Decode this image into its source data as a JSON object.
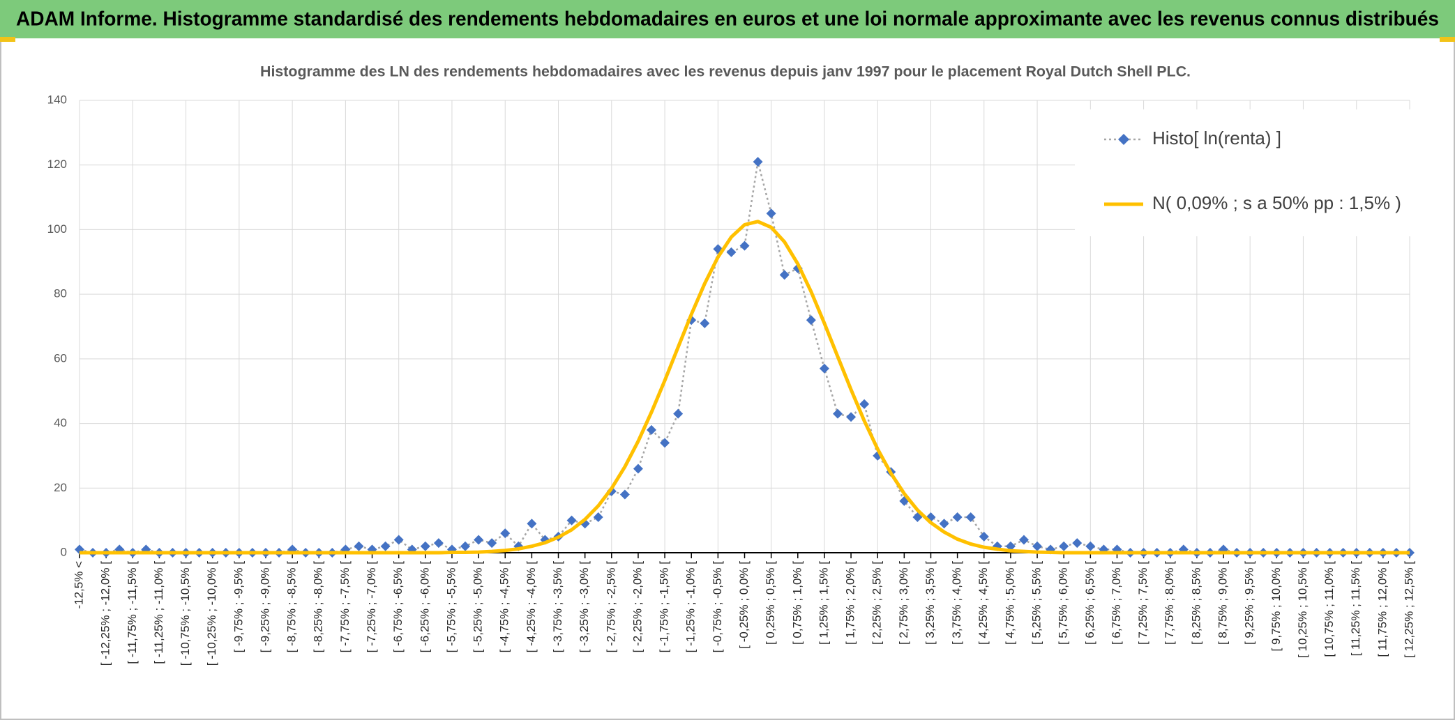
{
  "header": {
    "title": "ADAM Informe. Histogramme standardisé des rendements hebdomadaires en euros et une loi normale approximante avec les revenus connus distribués"
  },
  "chart_data": {
    "type": "line",
    "title": "Histogramme des LN des rendements hebdomadaires avec les revenus depuis janv 1997 pour le placement Royal Dutch Shell PLC.",
    "categories": [
      "-12,5% <",
      null,
      "[ -12,25% ; -12,0% [",
      null,
      "[ -11,75% ; -11,5% [",
      null,
      "[ -11,25% ; -11,0% [",
      null,
      "[ -10,75% ; -10,5% [",
      null,
      "[ -10,25% ; -10,0% [",
      null,
      "[ -9,75% ; -9,5% [",
      null,
      "[ -9,25% ; -9,0% [",
      null,
      "[ -8,75% ; -8,5% [",
      null,
      "[ -8,25% ; -8,0% [",
      null,
      "[ -7,75% ; -7,5% [",
      null,
      "[ -7,25% ; -7,0% [",
      null,
      "[ -6,75% ; -6,5% [",
      null,
      "[ -6,25% ; -6,0% [",
      null,
      "[ -5,75% ; -5,5% [",
      null,
      "[ -5,25% ; -5,0% [",
      null,
      "[ -4,75% ; -4,5% [",
      null,
      "[ -4,25% ; -4,0% [",
      null,
      "[ -3,75% ; -3,5% [",
      null,
      "[ -3,25% ; -3,0% [",
      null,
      "[ -2,75% ; -2,5% [",
      null,
      "[ -2,25% ; -2,0% [",
      null,
      "[ -1,75% ; -1,5% [",
      null,
      "[ -1,25% ; -1,0% [",
      null,
      "[ -0,75% ; -0,5% [",
      null,
      "[ -0,25% ; 0,0% [",
      null,
      "[ 0,25% ; 0,5% [",
      null,
      "[ 0,75% ; 1,0% [",
      null,
      "[ 1,25% ; 1,5% [",
      null,
      "[ 1,75% ; 2,0% [",
      null,
      "[ 2,25% ; 2,5% [",
      null,
      "[ 2,75% ; 3,0% [",
      null,
      "[ 3,25% ; 3,5% [",
      null,
      "[ 3,75% ; 4,0% [",
      null,
      "[ 4,25% ; 4,5% [",
      null,
      "[ 4,75% ; 5,0% [",
      null,
      "[ 5,25% ; 5,5% [",
      null,
      "[ 5,75% ; 6,0% [",
      null,
      "[ 6,25% ; 6,5% [",
      null,
      "[ 6,75% ; 7,0% [",
      null,
      "[ 7,25% ; 7,5% [",
      null,
      "[ 7,75% ; 8,0% [",
      null,
      "[ 8,25% ; 8,5% [",
      null,
      "[ 8,75% ; 9,0% [",
      null,
      "[ 9,25% ; 9,5% [",
      null,
      "[ 9,75% ; 10,0% [",
      null,
      "[ 10,25% ; 10,5% [",
      null,
      "[ 10,75% ; 11,0% [",
      null,
      "[ 11,25% ; 11,5% [",
      null,
      "[ 11,75% ; 12,0% [",
      null,
      "[ 12,25% ; 12,5% ["
    ],
    "series": [
      {
        "name": "Histo[ ln(renta) ]",
        "color": "#4472c4",
        "line_color": "#a6a6a6",
        "linestyle": "dotted",
        "marker": "diamond",
        "values": [
          1,
          0,
          0,
          1,
          0,
          1,
          0,
          0,
          0,
          0,
          0,
          0,
          0,
          0,
          0,
          0,
          1,
          0,
          0,
          0,
          1,
          2,
          1,
          2,
          4,
          1,
          2,
          3,
          1,
          2,
          4,
          3,
          6,
          2,
          9,
          4,
          5,
          10,
          9,
          11,
          19,
          18,
          26,
          38,
          34,
          43,
          72,
          71,
          94,
          93,
          95,
          121,
          105,
          86,
          88,
          72,
          57,
          43,
          42,
          46,
          30,
          25,
          16,
          11,
          11,
          9,
          11,
          11,
          5,
          2,
          2,
          4,
          2,
          1,
          2,
          3,
          2,
          1,
          1,
          0,
          0,
          0,
          0,
          1,
          0,
          0,
          1,
          0,
          0,
          0,
          0,
          0,
          0,
          0,
          0,
          0,
          0,
          0,
          0,
          0,
          0
        ]
      },
      {
        "name": "N( 0,09% ; s a 50% pp : 1,5% )",
        "color": "#ffc000",
        "linestyle": "solid",
        "values": [
          0,
          0,
          0,
          0,
          0,
          0,
          0,
          0,
          0,
          0,
          0,
          0,
          0,
          0,
          0,
          0,
          0,
          0,
          0,
          0,
          0,
          0,
          0,
          0,
          0,
          0,
          0,
          0,
          0.1,
          0.1,
          0.2,
          0.4,
          0.7,
          1.2,
          2.0,
          3.1,
          4.8,
          7.1,
          10.3,
          14.5,
          19.9,
          26.6,
          34.5,
          43.5,
          53.3,
          63.6,
          73.8,
          83.3,
          91.5,
          97.7,
          101.5,
          102.5,
          100.7,
          96.2,
          89.4,
          80.8,
          71.0,
          60.7,
          50.5,
          40.8,
          32.1,
          24.6,
          18.3,
          13.2,
          9.3,
          6.4,
          4.2,
          2.7,
          1.7,
          1.1,
          0.6,
          0.4,
          0.2,
          0.1,
          0,
          0,
          0,
          0,
          0,
          0,
          0,
          0,
          0,
          0,
          0,
          0,
          0,
          0,
          0,
          0,
          0,
          0,
          0,
          0,
          0,
          0,
          0,
          0,
          0,
          0,
          0
        ]
      }
    ],
    "ylim": [
      0,
      140
    ],
    "yticks": [
      0,
      20,
      40,
      60,
      80,
      100,
      120,
      140
    ],
    "grid": true,
    "legend": "upper right"
  }
}
